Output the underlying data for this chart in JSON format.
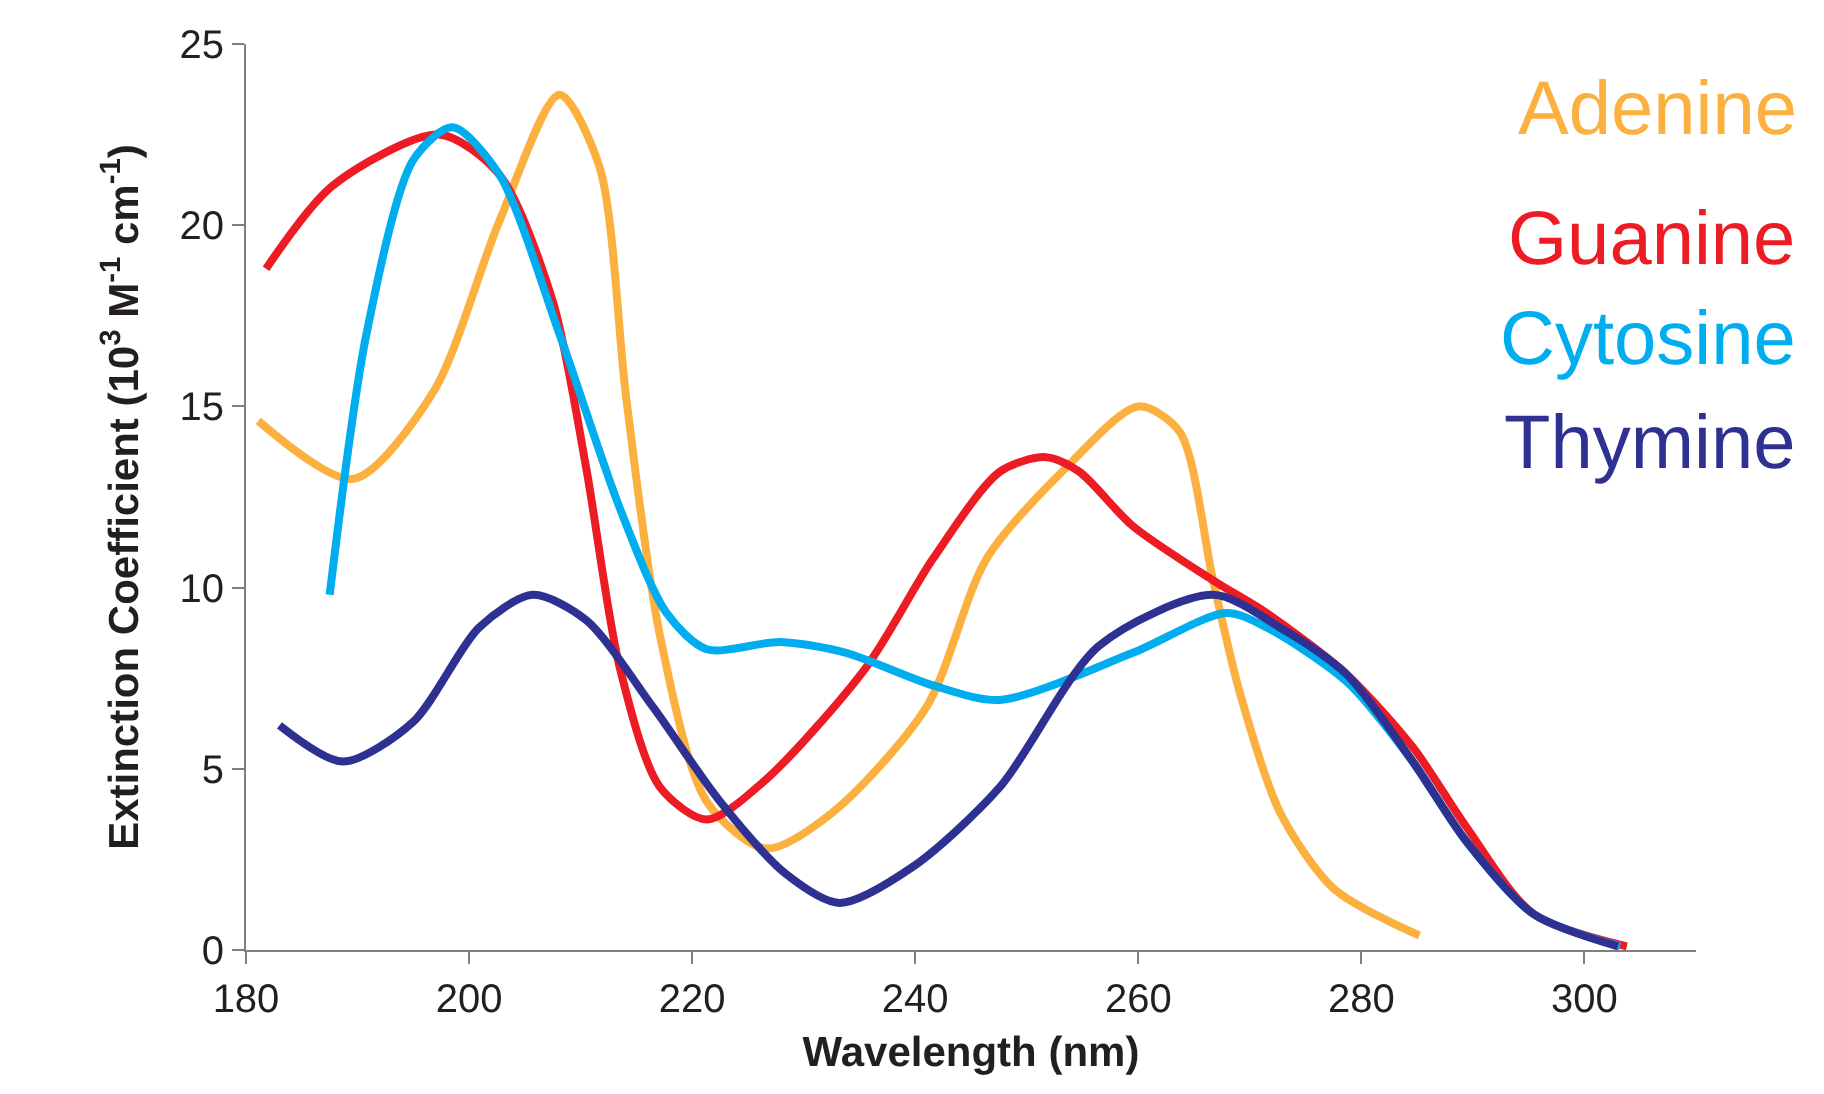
{
  "chart_data": {
    "type": "line",
    "xlabel": "Wavelength (nm)",
    "ylabel": "Extinction Coefficient (10$^{3}$ M$^{-1}$ cm$^{-1}$)",
    "xlim": [
      180,
      310
    ],
    "xticks": [
      180,
      200,
      220,
      240,
      260,
      280,
      300
    ],
    "ylim": [
      0,
      25
    ],
    "yticks": [
      0,
      5,
      10,
      15,
      20,
      25
    ],
    "marker": "none",
    "line_style": "solid",
    "series": [
      {
        "name": "Adenine",
        "color": "#fbb040",
        "x": [
          181.1,
          189.6,
          196.8,
          202.7,
          208.1,
          211.7,
          214.1,
          217.1,
          221.3,
          226.6,
          232.6,
          241.0,
          246.4,
          253.5,
          260.0,
          263.7,
          266.7,
          269.1,
          272.7,
          277.5,
          285.2
        ],
        "values": [
          14.6,
          13.0,
          15.4,
          20.1,
          23.6,
          21.6,
          15.2,
          8.7,
          4.1,
          2.8,
          3.8,
          6.7,
          10.8,
          13.3,
          15.0,
          14.3,
          10.2,
          7.1,
          3.8,
          1.7,
          0.4
        ]
      },
      {
        "name": "Guanine",
        "color": "#ed1c24",
        "x": [
          181.8,
          187.8,
          197.3,
          202.7,
          207.5,
          210.5,
          213.5,
          217.1,
          221.3,
          226.6,
          235.6,
          241.6,
          247.6,
          251.7,
          254.7,
          259.5,
          266.7,
          271.5,
          278.7,
          284.6,
          289.4,
          295.4,
          303.8
        ],
        "values": [
          18.8,
          21.1,
          22.5,
          21.4,
          17.9,
          13.3,
          7.8,
          4.5,
          3.6,
          4.7,
          7.8,
          10.8,
          13.2,
          13.6,
          13.2,
          11.7,
          10.2,
          9.3,
          7.6,
          5.6,
          3.4,
          1.0,
          0.1
        ]
      },
      {
        "name": "Cytosine",
        "color": "#00aeef",
        "x": [
          187.5,
          190.8,
          195.0,
          198.5,
          202.7,
          208.1,
          213.5,
          217.7,
          221.3,
          227.9,
          233.8,
          241.6,
          247.6,
          259.5,
          267.9,
          271.5,
          278.7,
          284.6,
          289.4,
          295.4,
          303.2
        ],
        "values": [
          9.8,
          17.0,
          21.8,
          22.7,
          21.4,
          17.0,
          12.2,
          9.3,
          8.3,
          8.5,
          8.2,
          7.3,
          6.9,
          8.2,
          9.3,
          8.9,
          7.4,
          5.2,
          3.0,
          1.0,
          0.1
        ]
      },
      {
        "name": "Thymine",
        "color": "#2e3192",
        "x": [
          183.0,
          188.7,
          195.0,
          200.9,
          205.7,
          210.5,
          216.5,
          222.5,
          228.4,
          233.2,
          239.8,
          247.6,
          256.5,
          266.7,
          272.7,
          278.7,
          284.6,
          289.4,
          295.4,
          303.0
        ],
        "values": [
          6.2,
          5.2,
          6.3,
          8.9,
          9.8,
          9.1,
          6.7,
          4.1,
          2.1,
          1.3,
          2.3,
          4.5,
          8.4,
          9.8,
          8.9,
          7.6,
          5.2,
          3.0,
          1.0,
          0.1
        ]
      }
    ]
  }
}
